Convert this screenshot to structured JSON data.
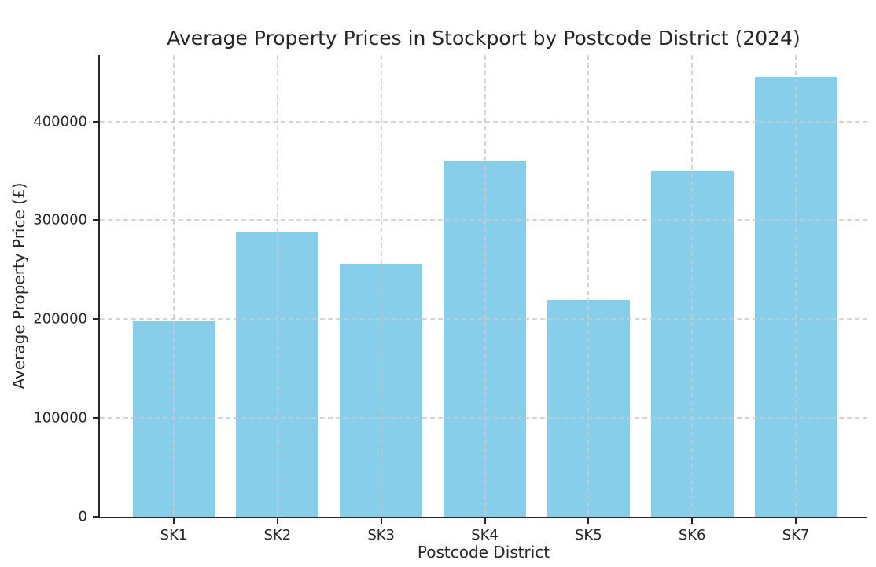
{
  "title": "Average Property Prices in Stockport by Postcode District (2024)",
  "chart_data": {
    "type": "bar",
    "categories": [
      "SK1",
      "SK2",
      "SK3",
      "SK4",
      "SK5",
      "SK6",
      "SK7"
    ],
    "values": [
      198000,
      287500,
      255500,
      360000,
      219500,
      350000,
      445000
    ],
    "title": "Average Property Prices in Stockport by Postcode District (2024)",
    "xlabel": "Postcode District",
    "ylabel": "Average Property Price (£)",
    "ylim": [
      0,
      467250
    ],
    "yticks": [
      0,
      100000,
      200000,
      300000,
      400000
    ],
    "ytick_labels": [
      "0",
      "100000",
      "200000",
      "300000",
      "400000"
    ],
    "grid": true,
    "grid_style": "dashed",
    "legend": "none",
    "bar_color": "#87CEEB",
    "grid_color": "#c9c9c9",
    "axis_color": "#262626",
    "text_color": "#262626",
    "background_color": "#ffffff"
  }
}
